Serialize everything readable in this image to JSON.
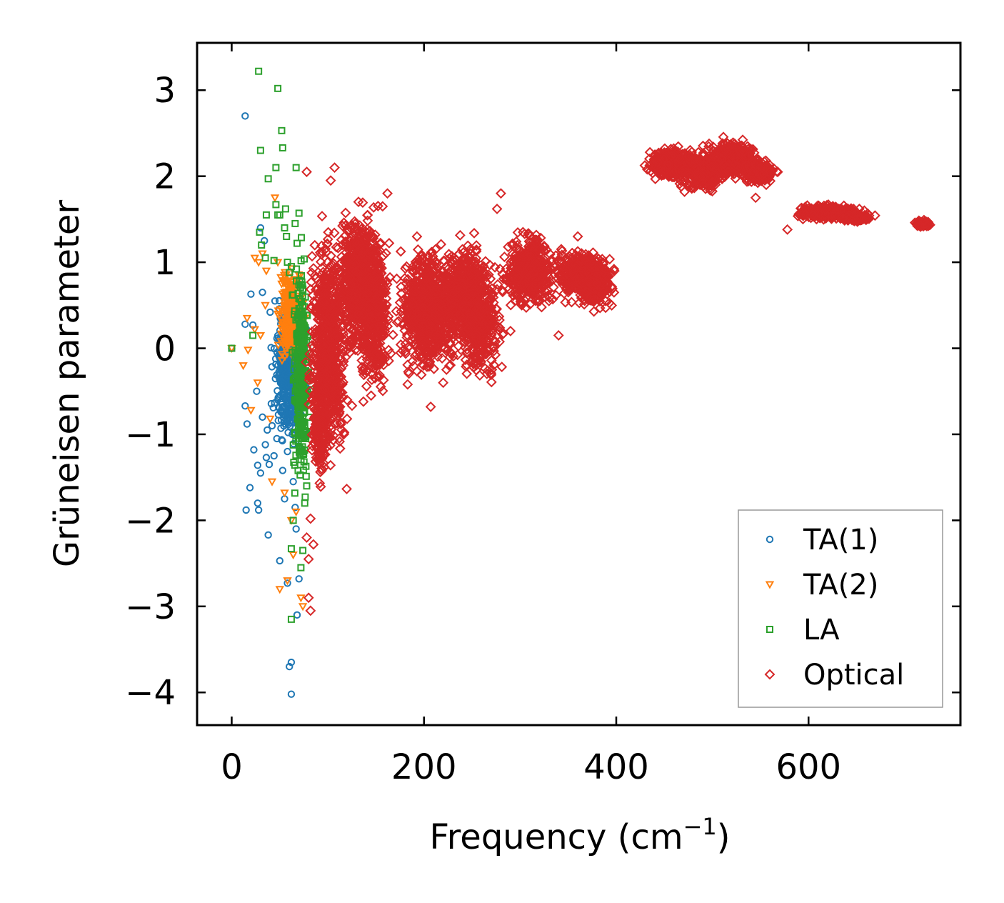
{
  "chart_data": {
    "type": "scatter",
    "title": "",
    "xlabel": "Frequency (cm",
    "xlabel_sup": "−1",
    "xlabel_close": ")",
    "ylabel": "Grüneisen parameter",
    "xlim": [
      -36,
      758
    ],
    "ylim": [
      -4.38,
      3.55
    ],
    "x_ticks": [
      0,
      200,
      400,
      600
    ],
    "x_tick_labels": [
      "0",
      "200",
      "400",
      "600"
    ],
    "y_ticks": [
      3,
      2,
      1,
      0,
      -1,
      -2,
      -3,
      -4
    ],
    "y_tick_labels": [
      "3",
      "2",
      "1",
      "0",
      "−1",
      "−2",
      "−3",
      "−4"
    ],
    "legend_position": "bottom-right",
    "series": [
      {
        "name": "TA(1)",
        "label": "TA(1)",
        "marker": "circle",
        "color": "#1f77b4",
        "points": [
          [
            0,
            0
          ],
          [
            14,
            2.7
          ],
          [
            14,
            0.28
          ],
          [
            14,
            -0.67
          ],
          [
            16,
            -0.88
          ],
          [
            15,
            -1.88
          ],
          [
            19,
            -1.62
          ],
          [
            20,
            0.63
          ],
          [
            22,
            0.27
          ],
          [
            23,
            -1.18
          ],
          [
            26,
            -0.5
          ],
          [
            27,
            -1.8
          ],
          [
            27,
            -1.36
          ],
          [
            28,
            -1.88
          ],
          [
            30,
            1.4
          ],
          [
            30,
            -1.45
          ],
          [
            32,
            -0.8
          ],
          [
            32,
            0.65
          ],
          [
            34,
            1.25
          ],
          [
            35,
            -1.12
          ],
          [
            36,
            -1.27
          ],
          [
            37,
            -0.95
          ],
          [
            38,
            -2.17
          ],
          [
            39,
            -1.35
          ],
          [
            40,
            0.42
          ],
          [
            42,
            -0.9
          ],
          [
            44,
            -1.25
          ],
          [
            45,
            0.55
          ],
          [
            47,
            -1.05
          ],
          [
            50,
            -2.47
          ],
          [
            53,
            -1.42
          ],
          [
            55,
            -1.75
          ],
          [
            58,
            -2.73
          ],
          [
            60,
            -3.7
          ],
          [
            62,
            -3.65
          ],
          [
            62,
            -4.02
          ],
          [
            64,
            -1.55
          ],
          [
            66,
            -1.85
          ],
          [
            67,
            -2.1
          ],
          [
            68,
            -3.1
          ],
          [
            70,
            -2.68
          ],
          [
            58,
            -1.2
          ],
          [
            63,
            -1.0
          ],
          [
            55,
            -0.85
          ],
          [
            48,
            -0.6
          ]
        ],
        "cluster": {
          "x_range": [
            30,
            80
          ],
          "center": [
            60,
            -0.3
          ],
          "spread": [
            12,
            0.55
          ],
          "count": 450
        }
      },
      {
        "name": "TA(2)",
        "label": "TA(2)",
        "marker": "triangle-down",
        "color": "#ff7f0e",
        "points": [
          [
            0,
            0
          ],
          [
            12,
            -0.2
          ],
          [
            16,
            0.35
          ],
          [
            17,
            -0.02
          ],
          [
            20,
            -0.72
          ],
          [
            24,
            1.05
          ],
          [
            24,
            0.22
          ],
          [
            27,
            -0.4
          ],
          [
            28,
            1.0
          ],
          [
            30,
            0.15
          ],
          [
            32,
            1.1
          ],
          [
            36,
            0.9
          ],
          [
            40,
            -0.82
          ],
          [
            42,
            -1.55
          ],
          [
            45,
            1.75
          ],
          [
            48,
            1.0
          ],
          [
            48,
            0.4
          ],
          [
            50,
            -2.8
          ],
          [
            55,
            -1.68
          ],
          [
            58,
            -2.7
          ],
          [
            62,
            -2.0
          ],
          [
            64,
            -2.4
          ],
          [
            67,
            -1.9
          ],
          [
            72,
            -2.9
          ],
          [
            74,
            -3.0
          ],
          [
            35,
            0.5
          ],
          [
            52,
            0.75
          ]
        ],
        "cluster": {
          "x_range": [
            40,
            80
          ],
          "center": [
            62,
            0.4
          ],
          "spread": [
            9,
            0.45
          ],
          "count": 250
        }
      },
      {
        "name": "LA",
        "label": "LA",
        "marker": "square",
        "color": "#2ca02c",
        "points": [
          [
            0,
            0
          ],
          [
            22,
            0.15
          ],
          [
            28,
            3.22
          ],
          [
            29,
            1.35
          ],
          [
            30,
            2.3
          ],
          [
            31,
            1.2
          ],
          [
            35,
            1.05
          ],
          [
            36,
            1.55
          ],
          [
            38,
            1.97
          ],
          [
            44,
            1.02
          ],
          [
            46,
            1.67
          ],
          [
            46,
            2.1
          ],
          [
            48,
            3.02
          ],
          [
            48,
            1.55
          ],
          [
            50,
            1.55
          ],
          [
            52,
            2.53
          ],
          [
            53,
            2.33
          ],
          [
            55,
            1.4
          ],
          [
            56,
            1.62
          ],
          [
            57,
            1.3
          ],
          [
            58,
            1.0
          ],
          [
            60,
            0.88
          ],
          [
            62,
            -3.15
          ],
          [
            62,
            -2.33
          ],
          [
            64,
            -2.0
          ],
          [
            66,
            1.45
          ],
          [
            67,
            2.1
          ],
          [
            68,
            1.22
          ],
          [
            70,
            1.57
          ],
          [
            72,
            -2.55
          ],
          [
            74,
            -2.35
          ],
          [
            76,
            -1.8
          ],
          [
            78,
            -1.6
          ],
          [
            62,
            0.95
          ],
          [
            72,
            0.2
          ],
          [
            76,
            -0.5
          ],
          [
            70,
            -0.8
          ]
        ],
        "cluster": {
          "x_range": [
            55,
            82
          ],
          "center": [
            72,
            -0.3
          ],
          "spread": [
            6,
            0.9
          ],
          "count": 320
        }
      },
      {
        "name": "Optical",
        "label": "Optical",
        "marker": "diamond",
        "color": "#d62728",
        "points": [
          [
            78,
            2.05
          ],
          [
            78,
            -2.2
          ],
          [
            80,
            -2.45
          ],
          [
            80,
            -2.9
          ],
          [
            82,
            -3.05
          ],
          [
            85,
            -2.28
          ],
          [
            82,
            -1.98
          ],
          [
            103,
            1.95
          ],
          [
            107,
            2.1
          ],
          [
            120,
            -0.6
          ],
          [
            120,
            -0.82
          ],
          [
            137,
            -0.62
          ],
          [
            145,
            -0.55
          ],
          [
            152,
            -0.2
          ],
          [
            162,
            1.8
          ],
          [
            157,
            1.65
          ],
          [
            183,
            -0.42
          ],
          [
            207,
            -0.68
          ],
          [
            212,
            1.15
          ],
          [
            220,
            -0.4
          ],
          [
            258,
            -0.1
          ],
          [
            280,
            1.8
          ],
          [
            276,
            1.62
          ],
          [
            290,
            0.2
          ],
          [
            303,
            1.35
          ],
          [
            330,
            0.55
          ],
          [
            340,
            0.15
          ],
          [
            360,
            1.3
          ],
          [
            380,
            0.75
          ],
          [
            398,
            0.9
          ],
          [
            545,
            1.75
          ],
          [
            556,
            1.9
          ],
          [
            568,
            2.05
          ],
          [
            578,
            1.38
          ],
          [
            660,
            1.5
          ],
          [
            723,
            1.42
          ]
        ],
        "clusters": [
          {
            "center": [
              100,
              0.0
            ],
            "spread": [
              14,
              0.9
            ],
            "count": 700
          },
          {
            "center": [
              135,
              0.8
            ],
            "spread": [
              18,
              0.55
            ],
            "count": 700
          },
          {
            "center": [
              148,
              0.3
            ],
            "spread": [
              12,
              0.55
            ],
            "count": 300
          },
          {
            "center": [
              92,
              -0.9
            ],
            "spread": [
              6,
              0.45
            ],
            "count": 150
          },
          {
            "center": [
              205,
              0.45
            ],
            "spread": [
              22,
              0.5
            ],
            "count": 750
          },
          {
            "center": [
              245,
              0.6
            ],
            "spread": [
              18,
              0.45
            ],
            "count": 500
          },
          {
            "center": [
              260,
              0.25
            ],
            "spread": [
              14,
              0.4
            ],
            "count": 300
          },
          {
            "center": [
              310,
              0.9
            ],
            "spread": [
              20,
              0.3
            ],
            "count": 450
          },
          {
            "center": [
              365,
              0.85
            ],
            "spread": [
              20,
              0.2
            ],
            "count": 350
          },
          {
            "center": [
              380,
              0.75
            ],
            "spread": [
              12,
              0.2
            ],
            "count": 200
          },
          {
            "center": [
              458,
              2.15
            ],
            "spread": [
              18,
              0.12
            ],
            "count": 350
          },
          {
            "center": [
              490,
              2.05
            ],
            "spread": [
              18,
              0.15
            ],
            "count": 300
          },
          {
            "center": [
              520,
              2.2
            ],
            "spread": [
              20,
              0.15
            ],
            "count": 350
          },
          {
            "center": [
              548,
              2.05
            ],
            "spread": [
              12,
              0.1
            ],
            "count": 200
          },
          {
            "center": [
              620,
              1.58
            ],
            "spread": [
              22,
              0.06
            ],
            "count": 300
          },
          {
            "center": [
              650,
              1.52
            ],
            "spread": [
              12,
              0.03
            ],
            "count": 150
          },
          {
            "center": [
              718,
              1.45
            ],
            "spread": [
              6,
              0.03
            ],
            "count": 80
          }
        ]
      }
    ]
  }
}
